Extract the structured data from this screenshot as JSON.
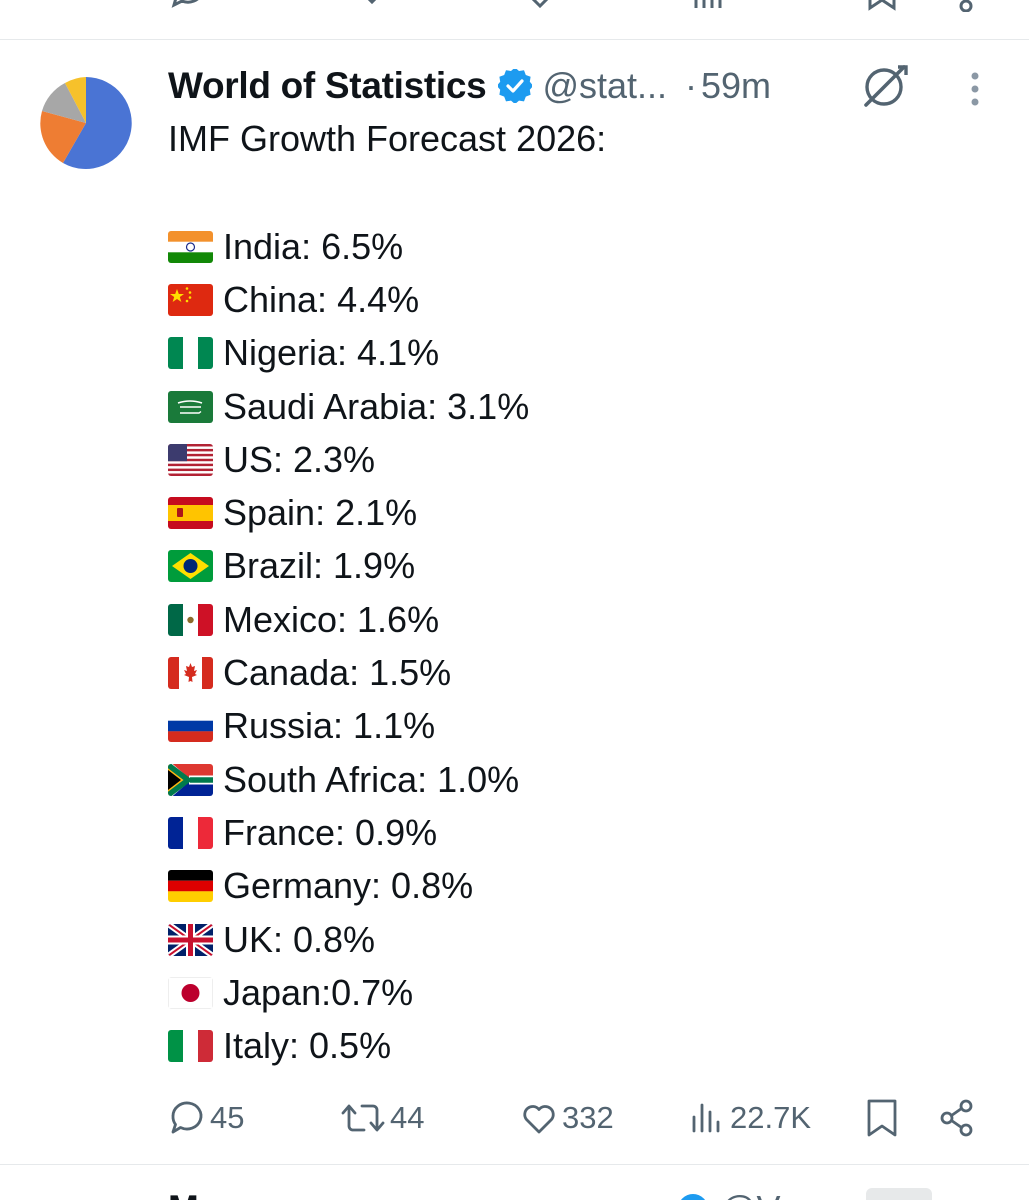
{
  "previous_tweet": {
    "icons": [
      "retweet-icon",
      "like-icon",
      "views-icon",
      "bookmark-icon",
      "share-icon"
    ]
  },
  "tweet": {
    "author": {
      "display_name": "World of Statistics",
      "handle": "@stat...",
      "verified": true,
      "avatar_icon": "pie-chart-avatar"
    },
    "separator": "·",
    "time": "59m",
    "title": "IMF Growth Forecast 2026:",
    "countries": [
      {
        "flag": "india",
        "text": "India: 6.5%"
      },
      {
        "flag": "china",
        "text": "China: 4.4%"
      },
      {
        "flag": "nigeria",
        "text": "Nigeria: 4.1%"
      },
      {
        "flag": "saudi-arabia",
        "text": "Saudi Arabia: 3.1%"
      },
      {
        "flag": "us",
        "text": "US: 2.3%"
      },
      {
        "flag": "spain",
        "text": "Spain: 2.1%"
      },
      {
        "flag": "brazil",
        "text": "Brazil: 1.9%"
      },
      {
        "flag": "mexico",
        "text": "Mexico: 1.6%"
      },
      {
        "flag": "canada",
        "text": "Canada: 1.5%"
      },
      {
        "flag": "russia",
        "text": "Russia: 1.1%"
      },
      {
        "flag": "south-africa",
        "text": "South Africa: 1.0%"
      },
      {
        "flag": "france",
        "text": "France: 0.9%"
      },
      {
        "flag": "germany",
        "text": "Germany: 0.8%"
      },
      {
        "flag": "uk",
        "text": "UK: 0.8%"
      },
      {
        "flag": "japan",
        "text": "Japan:0.7%"
      },
      {
        "flag": "italy",
        "text": "Italy: 0.5%"
      }
    ],
    "actions": {
      "replies": "45",
      "reposts": "44",
      "likes": "332",
      "views": "22.7K"
    }
  },
  "next_tweet": {
    "display_name": "M",
    "handle": "@V"
  },
  "colors": {
    "text_primary": "#0f1419",
    "text_secondary": "#536471",
    "verified_blue": "#1d9bf0",
    "divider": "#e6e9eb"
  }
}
